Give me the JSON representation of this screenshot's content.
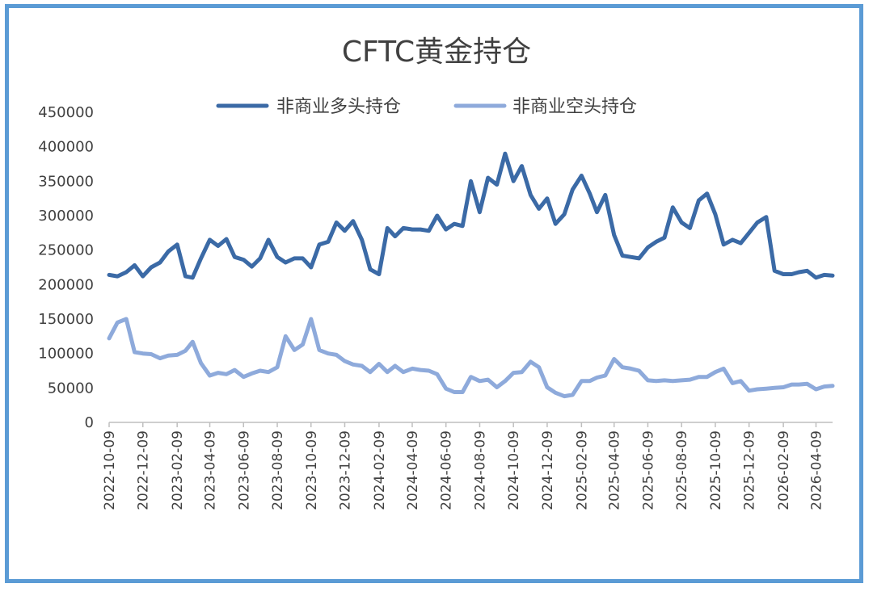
{
  "chart_data": {
    "type": "line",
    "title": "CFTC黄金持仓",
    "xlabel": "",
    "ylabel": "",
    "ylim": [
      0,
      450000
    ],
    "yticks": [
      "450000",
      "400000",
      "350000",
      "300000",
      "250000",
      "200000",
      "150000",
      "100000",
      "50000",
      "0"
    ],
    "x_tick_labels": [
      "2022-10-09",
      "2022-12-09",
      "2023-02-09",
      "2023-04-09",
      "2023-06-09",
      "2023-08-09",
      "2023-10-09",
      "2023-12-09",
      "2024-02-09",
      "2024-04-09",
      "2024-06-09",
      "2024-08-09",
      "2024-10-09",
      "2024-12-09",
      "2025-02-09",
      "2025-04-09",
      "2025-06-09",
      "2025-08-09",
      "2025-10-09",
      "2025-12-09",
      "2026-02-09",
      "2026-04-09"
    ],
    "x_range": [
      "2022-10-09",
      "2026-05-09"
    ],
    "grid": false,
    "legend_position": "top",
    "series": [
      {
        "name": "非商业多头持仓",
        "color": "#3b6aa6",
        "points": [
          [
            "2022-10-09",
            214000
          ],
          [
            "2022-10-24",
            212000
          ],
          [
            "2022-11-09",
            218000
          ],
          [
            "2022-11-24",
            228000
          ],
          [
            "2022-12-09",
            212000
          ],
          [
            "2022-12-24",
            225000
          ],
          [
            "2023-01-09",
            232000
          ],
          [
            "2023-01-24",
            248000
          ],
          [
            "2023-02-09",
            258000
          ],
          [
            "2023-02-24",
            212000
          ],
          [
            "2023-03-09",
            210000
          ],
          [
            "2023-03-24",
            238000
          ],
          [
            "2023-04-09",
            265000
          ],
          [
            "2023-04-24",
            256000
          ],
          [
            "2023-05-09",
            266000
          ],
          [
            "2023-05-24",
            240000
          ],
          [
            "2023-06-09",
            236000
          ],
          [
            "2023-06-24",
            226000
          ],
          [
            "2023-07-09",
            238000
          ],
          [
            "2023-07-24",
            265000
          ],
          [
            "2023-08-09",
            240000
          ],
          [
            "2023-08-24",
            232000
          ],
          [
            "2023-09-09",
            238000
          ],
          [
            "2023-09-24",
            238000
          ],
          [
            "2023-10-09",
            225000
          ],
          [
            "2023-10-24",
            258000
          ],
          [
            "2023-11-09",
            262000
          ],
          [
            "2023-11-24",
            290000
          ],
          [
            "2023-12-09",
            278000
          ],
          [
            "2023-12-24",
            292000
          ],
          [
            "2024-01-09",
            265000
          ],
          [
            "2024-01-24",
            222000
          ],
          [
            "2024-02-09",
            215000
          ],
          [
            "2024-02-24",
            282000
          ],
          [
            "2024-03-09",
            270000
          ],
          [
            "2024-03-24",
            282000
          ],
          [
            "2024-04-09",
            280000
          ],
          [
            "2024-04-24",
            280000
          ],
          [
            "2024-05-09",
            278000
          ],
          [
            "2024-05-24",
            300000
          ],
          [
            "2024-06-09",
            280000
          ],
          [
            "2024-06-24",
            288000
          ],
          [
            "2024-07-09",
            285000
          ],
          [
            "2024-07-24",
            350000
          ],
          [
            "2024-08-09",
            305000
          ],
          [
            "2024-08-24",
            355000
          ],
          [
            "2024-09-09",
            345000
          ],
          [
            "2024-09-24",
            390000
          ],
          [
            "2024-10-09",
            350000
          ],
          [
            "2024-10-24",
            372000
          ],
          [
            "2024-11-09",
            330000
          ],
          [
            "2024-11-24",
            310000
          ],
          [
            "2024-12-09",
            325000
          ],
          [
            "2024-12-24",
            288000
          ],
          [
            "2025-01-09",
            302000
          ],
          [
            "2025-01-24",
            338000
          ],
          [
            "2025-02-09",
            358000
          ],
          [
            "2025-02-24",
            332000
          ],
          [
            "2025-03-09",
            305000
          ],
          [
            "2025-03-24",
            330000
          ],
          [
            "2025-04-09",
            272000
          ],
          [
            "2025-04-24",
            242000
          ],
          [
            "2025-05-09",
            240000
          ],
          [
            "2025-05-24",
            238000
          ],
          [
            "2025-06-09",
            254000
          ],
          [
            "2025-06-24",
            262000
          ],
          [
            "2025-07-09",
            268000
          ],
          [
            "2025-07-24",
            312000
          ],
          [
            "2025-08-09",
            290000
          ],
          [
            "2025-08-24",
            282000
          ],
          [
            "2025-09-09",
            322000
          ],
          [
            "2025-09-24",
            332000
          ],
          [
            "2025-10-09",
            302000
          ],
          [
            "2025-10-24",
            258000
          ],
          [
            "2025-11-09",
            265000
          ],
          [
            "2025-11-24",
            260000
          ],
          [
            "2025-12-09",
            275000
          ],
          [
            "2025-12-24",
            290000
          ],
          [
            "2026-01-09",
            298000
          ],
          [
            "2026-01-24",
            220000
          ],
          [
            "2026-02-09",
            215000
          ],
          [
            "2026-02-24",
            215000
          ],
          [
            "2026-03-09",
            218000
          ],
          [
            "2026-03-24",
            220000
          ],
          [
            "2026-04-09",
            210000
          ],
          [
            "2026-04-24",
            214000
          ],
          [
            "2026-05-09",
            213000
          ]
        ]
      },
      {
        "name": "非商业空头持仓",
        "color": "#8eaadb",
        "points": [
          [
            "2022-10-09",
            122000
          ],
          [
            "2022-10-24",
            145000
          ],
          [
            "2022-11-09",
            150000
          ],
          [
            "2022-11-24",
            102000
          ],
          [
            "2022-12-09",
            100000
          ],
          [
            "2022-12-24",
            99000
          ],
          [
            "2023-01-09",
            93000
          ],
          [
            "2023-01-24",
            97000
          ],
          [
            "2023-02-09",
            98000
          ],
          [
            "2023-02-24",
            104000
          ],
          [
            "2023-03-09",
            117000
          ],
          [
            "2023-03-24",
            86000
          ],
          [
            "2023-04-09",
            68000
          ],
          [
            "2023-04-24",
            72000
          ],
          [
            "2023-05-09",
            70000
          ],
          [
            "2023-05-24",
            76000
          ],
          [
            "2023-06-09",
            66000
          ],
          [
            "2023-06-24",
            71000
          ],
          [
            "2023-07-09",
            75000
          ],
          [
            "2023-07-24",
            73000
          ],
          [
            "2023-08-09",
            80000
          ],
          [
            "2023-08-24",
            125000
          ],
          [
            "2023-09-09",
            105000
          ],
          [
            "2023-09-24",
            113000
          ],
          [
            "2023-10-09",
            150000
          ],
          [
            "2023-10-24",
            105000
          ],
          [
            "2023-11-09",
            100000
          ],
          [
            "2023-11-24",
            98000
          ],
          [
            "2023-12-09",
            89000
          ],
          [
            "2023-12-24",
            84000
          ],
          [
            "2024-01-09",
            82000
          ],
          [
            "2024-01-24",
            73000
          ],
          [
            "2024-02-09",
            85000
          ],
          [
            "2024-02-24",
            73000
          ],
          [
            "2024-03-09",
            82000
          ],
          [
            "2024-03-24",
            73000
          ],
          [
            "2024-04-09",
            78000
          ],
          [
            "2024-04-24",
            76000
          ],
          [
            "2024-05-09",
            75000
          ],
          [
            "2024-05-24",
            70000
          ],
          [
            "2024-06-09",
            49000
          ],
          [
            "2024-06-24",
            44000
          ],
          [
            "2024-07-09",
            44000
          ],
          [
            "2024-07-24",
            66000
          ],
          [
            "2024-08-09",
            60000
          ],
          [
            "2024-08-24",
            62000
          ],
          [
            "2024-09-09",
            51000
          ],
          [
            "2024-09-24",
            60000
          ],
          [
            "2024-10-09",
            72000
          ],
          [
            "2024-10-24",
            73000
          ],
          [
            "2024-11-09",
            88000
          ],
          [
            "2024-11-24",
            80000
          ],
          [
            "2024-12-09",
            51000
          ],
          [
            "2024-12-24",
            43000
          ],
          [
            "2025-01-09",
            38000
          ],
          [
            "2025-01-24",
            40000
          ],
          [
            "2025-02-09",
            60000
          ],
          [
            "2025-02-24",
            60000
          ],
          [
            "2025-03-09",
            65000
          ],
          [
            "2025-03-24",
            68000
          ],
          [
            "2025-04-09",
            92000
          ],
          [
            "2025-04-24",
            80000
          ],
          [
            "2025-05-09",
            78000
          ],
          [
            "2025-05-24",
            75000
          ],
          [
            "2025-06-09",
            61000
          ],
          [
            "2025-06-24",
            60000
          ],
          [
            "2025-07-09",
            61000
          ],
          [
            "2025-07-24",
            60000
          ],
          [
            "2025-08-09",
            61000
          ],
          [
            "2025-08-24",
            62000
          ],
          [
            "2025-09-09",
            66000
          ],
          [
            "2025-09-24",
            66000
          ],
          [
            "2025-10-09",
            73000
          ],
          [
            "2025-10-24",
            78000
          ],
          [
            "2025-11-09",
            57000
          ],
          [
            "2025-11-24",
            60000
          ],
          [
            "2025-12-09",
            46000
          ],
          [
            "2025-12-24",
            48000
          ],
          [
            "2026-01-09",
            49000
          ],
          [
            "2026-01-24",
            50000
          ],
          [
            "2026-02-09",
            51000
          ],
          [
            "2026-02-24",
            55000
          ],
          [
            "2026-03-09",
            55000
          ],
          [
            "2026-03-24",
            56000
          ],
          [
            "2026-04-09",
            48000
          ],
          [
            "2026-04-24",
            52000
          ],
          [
            "2026-05-09",
            53000
          ]
        ]
      }
    ]
  }
}
